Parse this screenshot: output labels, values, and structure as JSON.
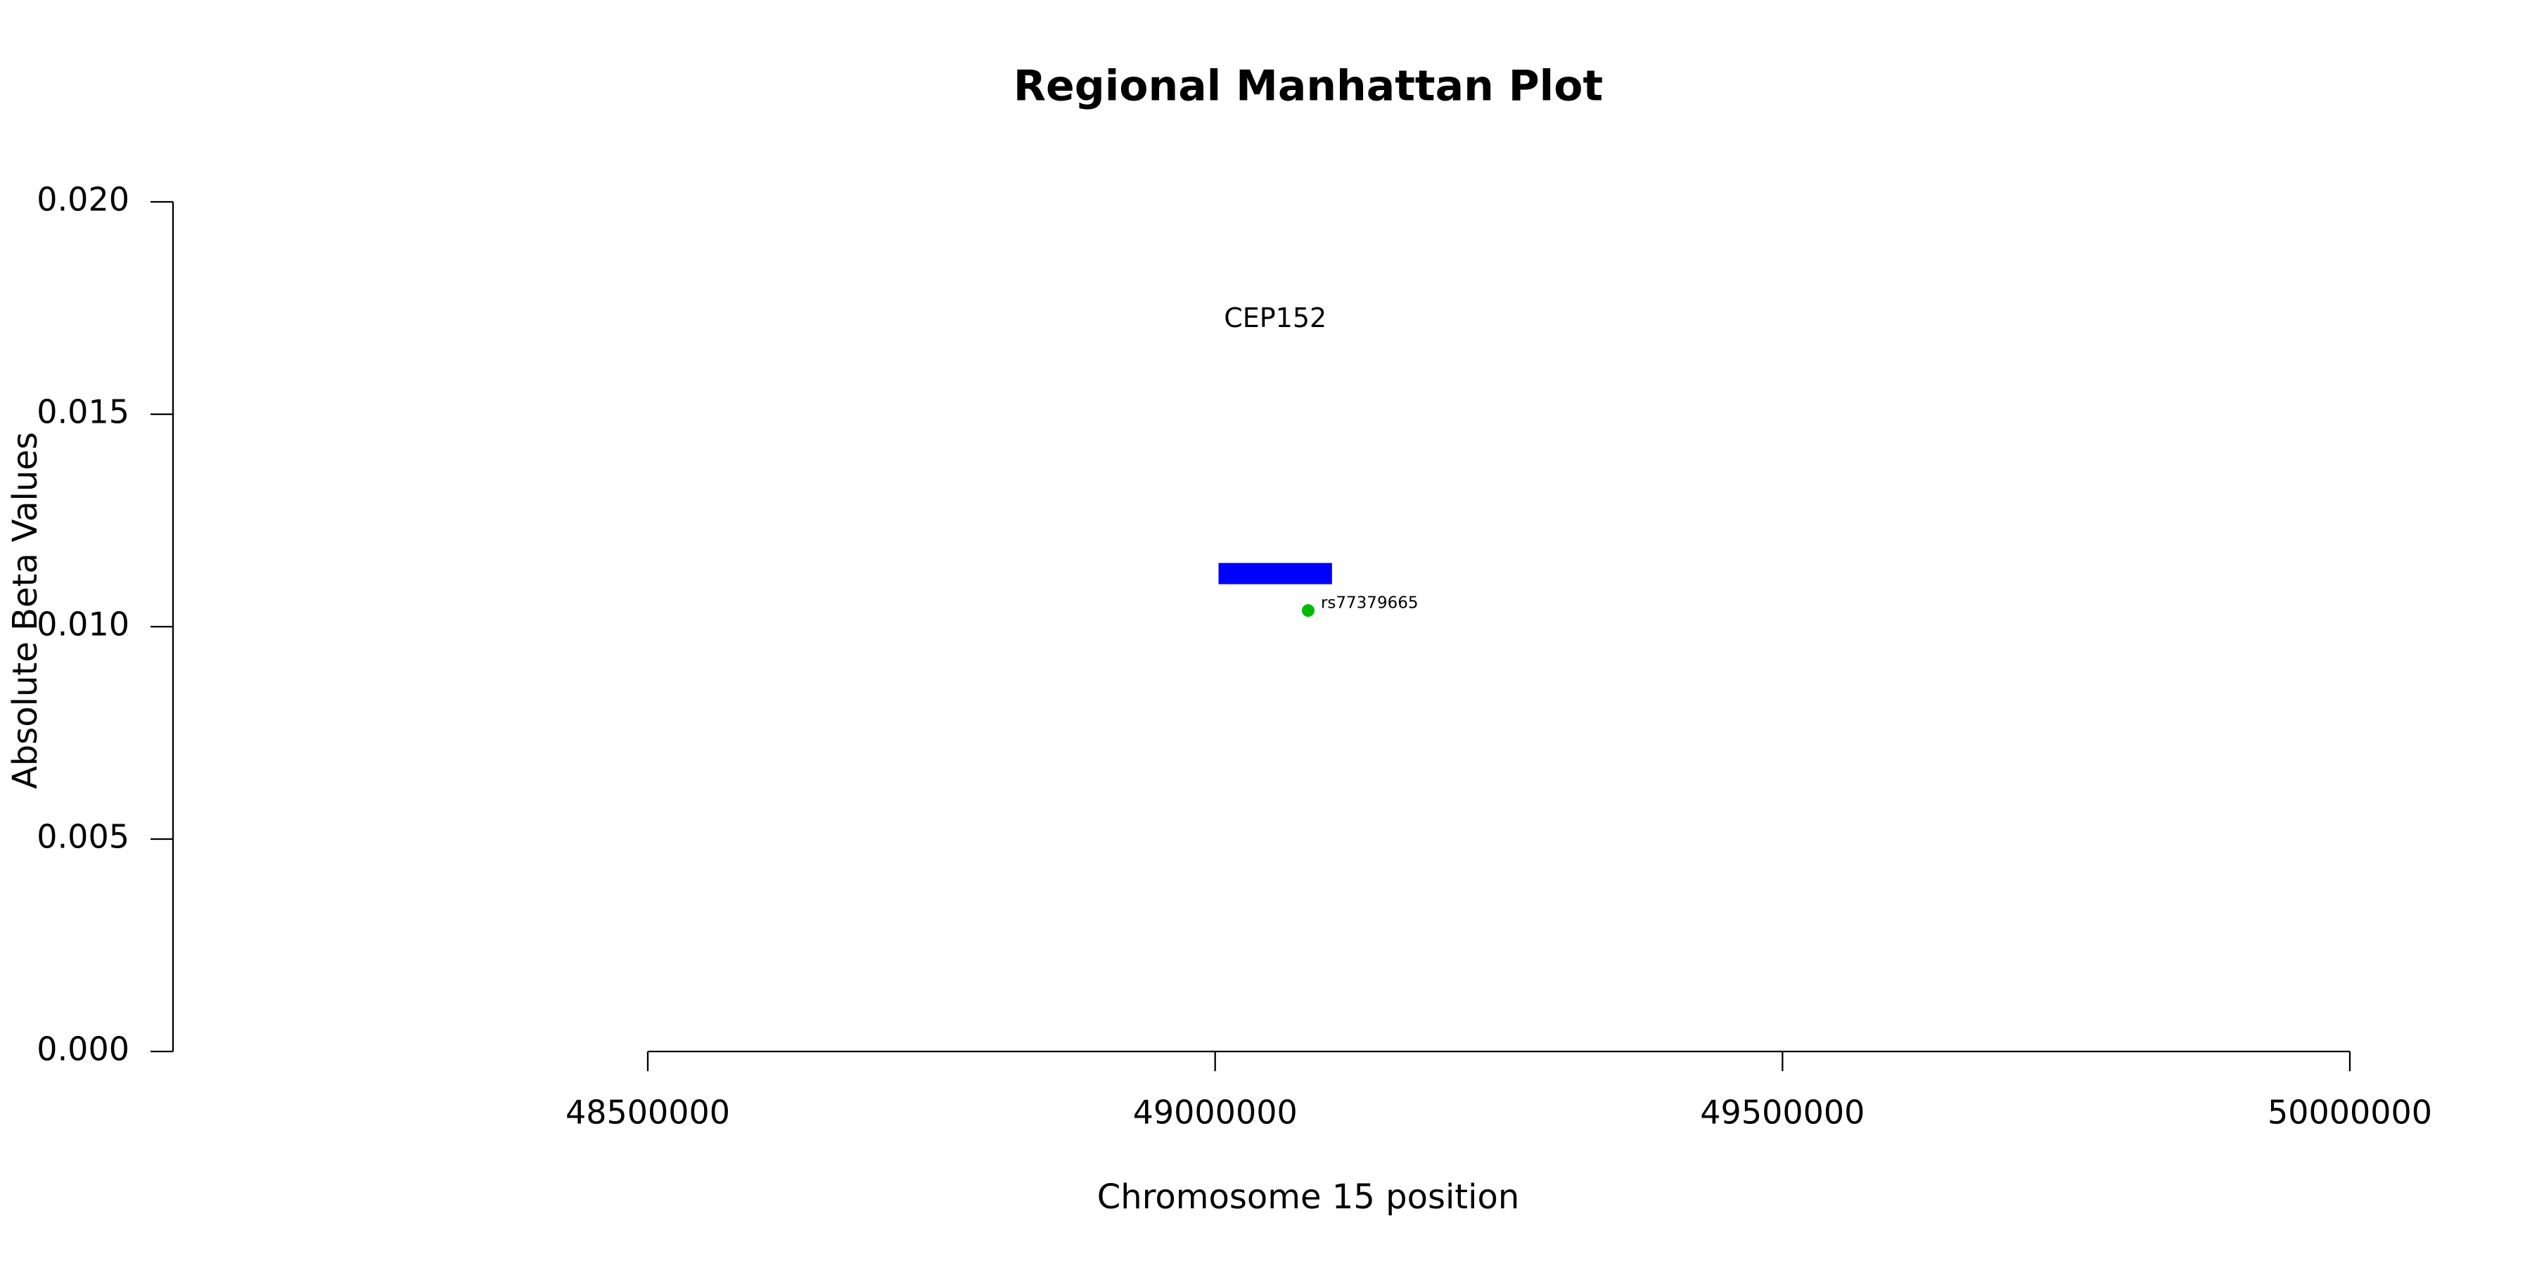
{
  "chart_data": {
    "type": "scatter",
    "title": "Regional Manhattan Plot",
    "x_label": "Chromosome 15 position",
    "y_label": "Absolute Beta Values",
    "xlim": [
      48081600,
      50106600
    ],
    "ylim": [
      0,
      0.02
    ],
    "xticks": [
      48500000,
      49000000,
      49500000,
      50000000
    ],
    "yticks": [
      {
        "value": 0,
        "label": "0.000"
      },
      {
        "value": 0.005,
        "label": "0.005"
      },
      {
        "value": 0.01,
        "label": "0.010"
      },
      {
        "value": 0.015,
        "label": "0.015"
      },
      {
        "value": 0.02,
        "label": "0.020"
      }
    ],
    "points": [
      {
        "label": "rs77379665",
        "x": 49082000,
        "y": 0.01038,
        "color": "#00bb00"
      }
    ],
    "genes": [
      {
        "label": "CEP152",
        "start": 49003000,
        "end": 49103000,
        "ymin": 0.011,
        "ymax": 0.0115,
        "color": "#0000ff"
      }
    ]
  }
}
